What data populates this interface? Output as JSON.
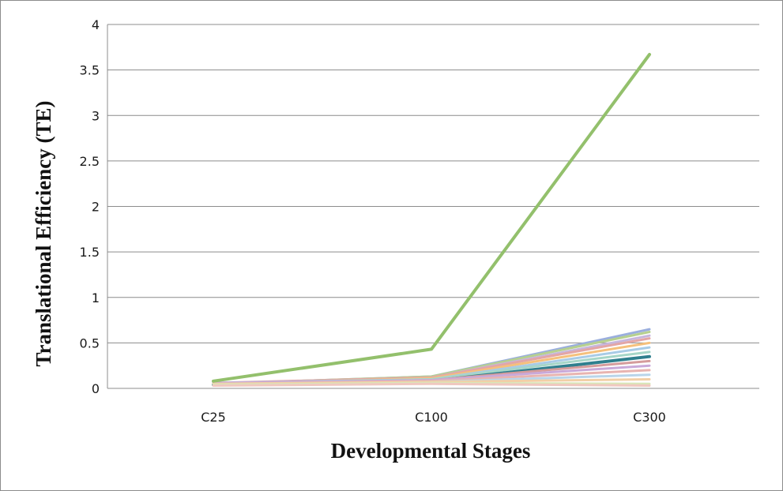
{
  "chart_data": {
    "type": "line",
    "title": "",
    "xlabel": "Developmental Stages",
    "ylabel": "Translational  Efficiency  (TE)",
    "categories": [
      "C25",
      "C100",
      "C300"
    ],
    "ylim": [
      0,
      4
    ],
    "yticks": [
      "0",
      "0.5",
      "1",
      "1.5",
      "2",
      "2.5",
      "3",
      "3.5",
      "4"
    ],
    "grid": true,
    "legend": "none",
    "series": [
      {
        "values": [
          0.05,
          0.13,
          0.65
        ],
        "color": "#9aaedd",
        "width": 3
      },
      {
        "values": [
          0.05,
          0.13,
          0.62
        ],
        "color": "#b6d08f",
        "width": 3
      },
      {
        "values": [
          0.05,
          0.12,
          0.58
        ],
        "color": "#c7b6dc",
        "width": 3
      },
      {
        "values": [
          0.06,
          0.12,
          0.55
        ],
        "color": "#e3a6a6",
        "width": 3
      },
      {
        "values": [
          0.05,
          0.11,
          0.5
        ],
        "color": "#f5c07c",
        "width": 3
      },
      {
        "values": [
          0.06,
          0.1,
          0.45
        ],
        "color": "#a8cbe6",
        "width": 3
      },
      {
        "values": [
          0.05,
          0.1,
          0.4
        ],
        "color": "#a6d6c8",
        "width": 3
      },
      {
        "values": [
          0.04,
          0.08,
          0.35
        ],
        "color": "#2f7f8e",
        "width": 4
      },
      {
        "values": [
          0.05,
          0.09,
          0.3
        ],
        "color": "#d59c9c",
        "width": 3
      },
      {
        "values": [
          0.06,
          0.09,
          0.25
        ],
        "color": "#c9a9d9",
        "width": 3
      },
      {
        "values": [
          0.05,
          0.08,
          0.2
        ],
        "color": "#e8b4b0",
        "width": 3
      },
      {
        "values": [
          0.04,
          0.07,
          0.15
        ],
        "color": "#b9d5ea",
        "width": 3
      },
      {
        "values": [
          0.05,
          0.07,
          0.1
        ],
        "color": "#f2cfa6",
        "width": 3
      },
      {
        "values": [
          0.04,
          0.06,
          0.05
        ],
        "color": "#d9e6b8",
        "width": 3
      },
      {
        "values": [
          0.03,
          0.05,
          0.03
        ],
        "color": "#f0c8c0",
        "width": 3
      },
      {
        "values": [
          0.08,
          0.43,
          3.67
        ],
        "color": "#93c06c",
        "width": 4
      }
    ]
  }
}
